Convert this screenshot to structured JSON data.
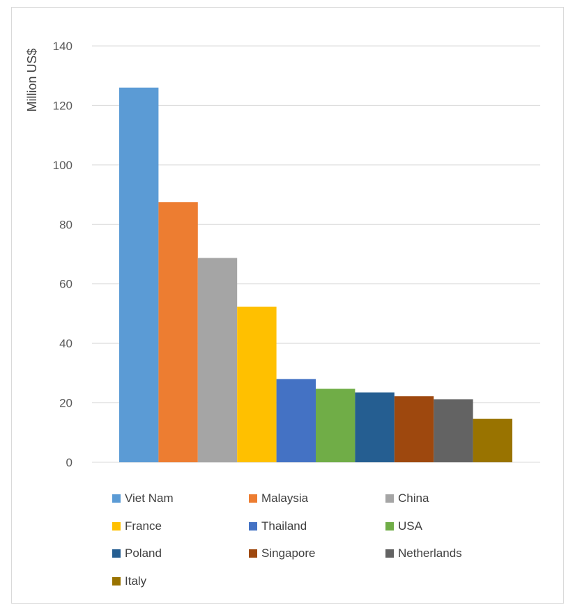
{
  "chart_data": {
    "type": "bar",
    "title": "",
    "ylabel": "Million US$",
    "xlabel": "",
    "ylim": [
      0,
      140
    ],
    "yticks": [
      0,
      20,
      40,
      60,
      80,
      100,
      120,
      140
    ],
    "grid": true,
    "legend_position": "bottom",
    "series": [
      {
        "name": "Viet Nam",
        "value": 126,
        "color": "#5b9bd5"
      },
      {
        "name": "Malaysia",
        "value": 87.5,
        "color": "#ed7d31"
      },
      {
        "name": "China",
        "value": 68.7,
        "color": "#a5a5a5"
      },
      {
        "name": "France",
        "value": 52.3,
        "color": "#ffc000"
      },
      {
        "name": "Thailand",
        "value": 28,
        "color": "#4472c4"
      },
      {
        "name": "USA",
        "value": 24.7,
        "color": "#70ad47"
      },
      {
        "name": "Poland",
        "value": 23.5,
        "color": "#255e91"
      },
      {
        "name": "Singapore",
        "value": 22.2,
        "color": "#9e480e"
      },
      {
        "name": "Netherlands",
        "value": 21.2,
        "color": "#636363"
      },
      {
        "name": "Italy",
        "value": 14.6,
        "color": "#997300"
      }
    ]
  }
}
